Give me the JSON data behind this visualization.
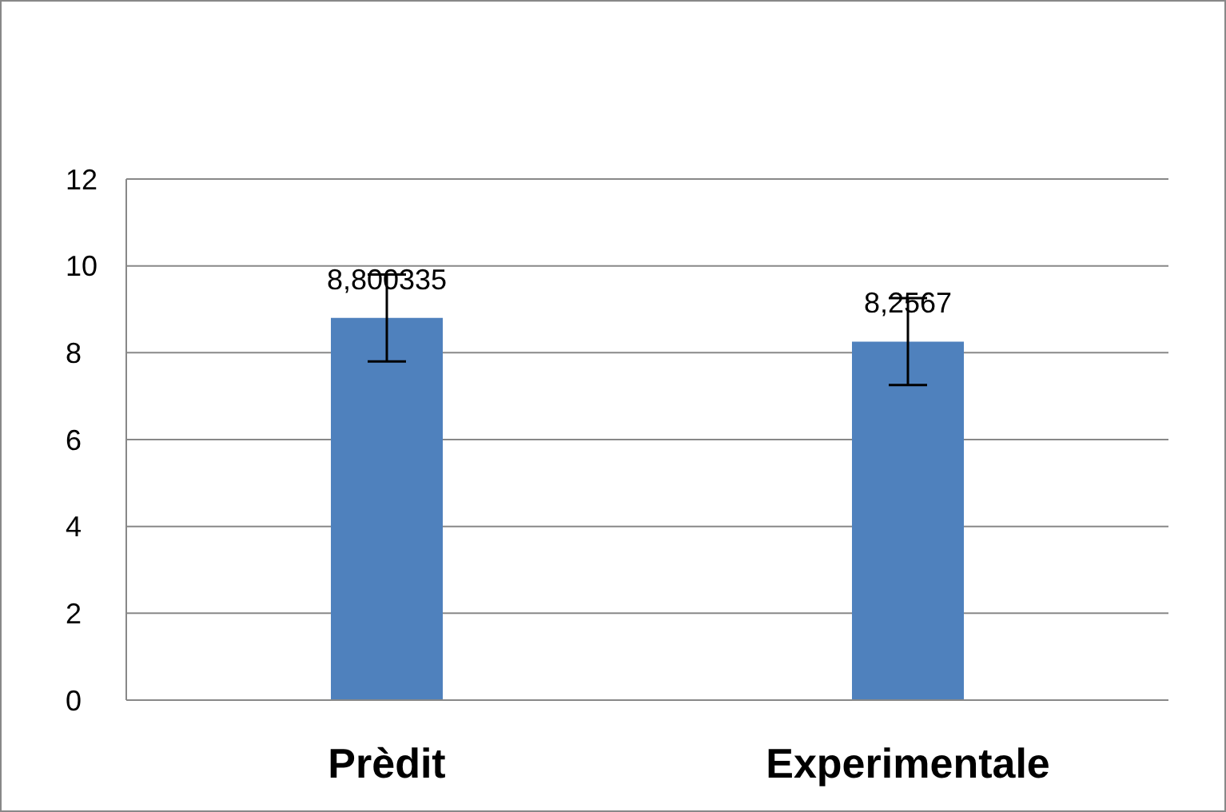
{
  "chart_data": {
    "type": "bar",
    "categories": [
      "Prèdit",
      "Experimentale"
    ],
    "values": [
      8.800335,
      8.2567
    ],
    "value_labels": [
      "8,800335",
      "8,2567"
    ],
    "errors": [
      1,
      1
    ],
    "color": "#4f81bd",
    "ylim": [
      0,
      12
    ],
    "yticks": [
      0,
      2,
      4,
      6,
      8,
      10,
      12
    ],
    "grid": "y",
    "legend": false
  }
}
